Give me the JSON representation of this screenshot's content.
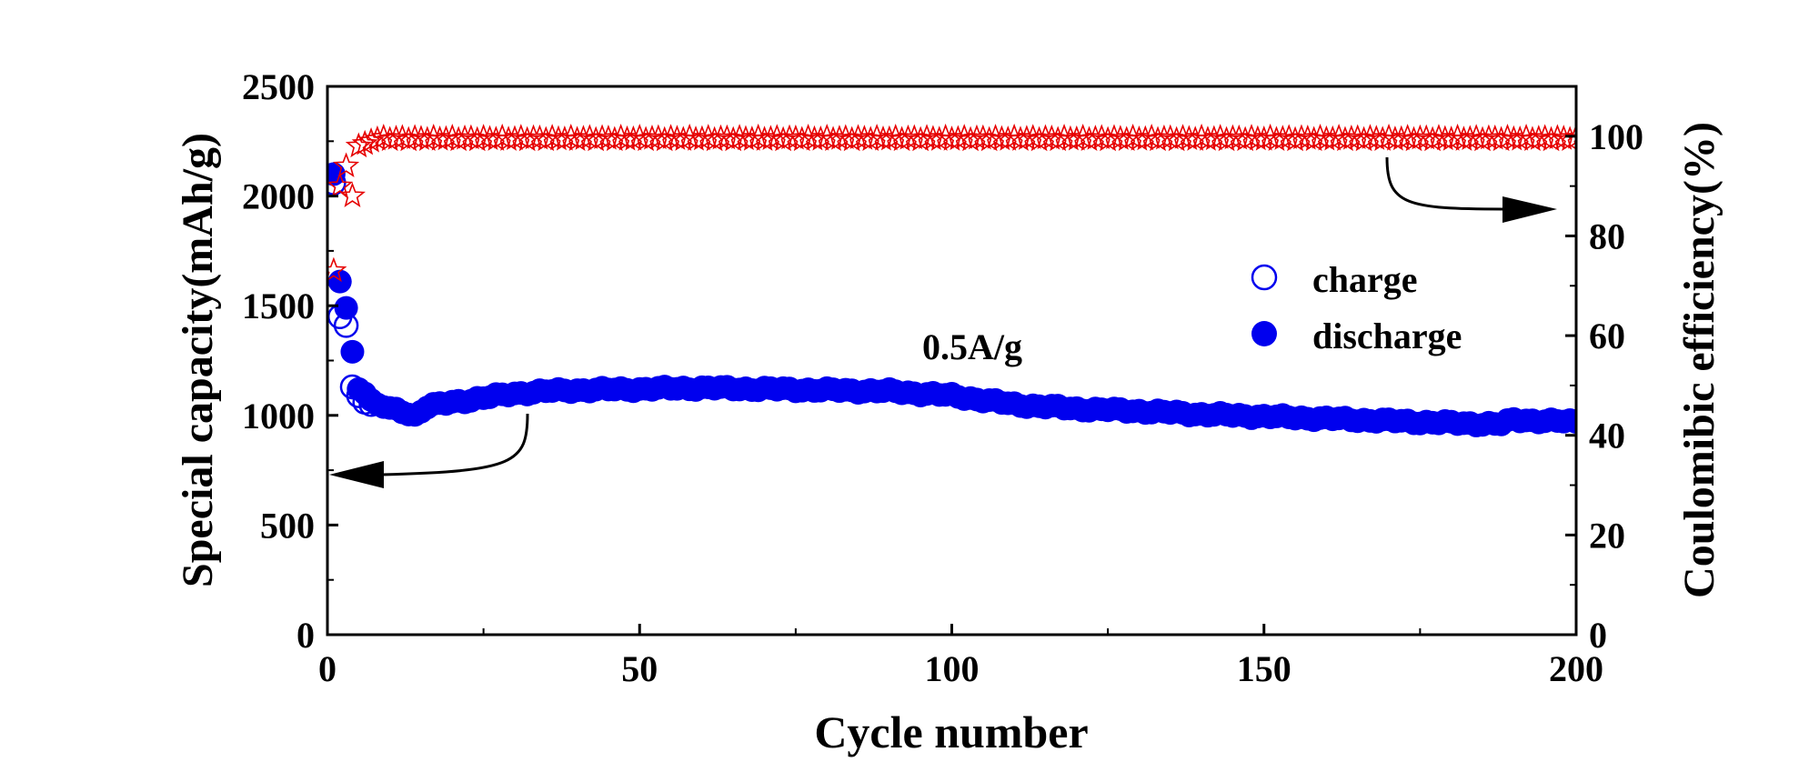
{
  "chart_data": {
    "type": "scatter",
    "title": "",
    "xlabel": "Cycle number",
    "ylabel": "Special capacity(mAh/g)",
    "y2label": "Coulomibic efficiency(%)",
    "xlim": [
      0,
      200
    ],
    "ylim": [
      0,
      2500
    ],
    "y2lim": [
      0,
      110
    ],
    "x_ticks": [
      0,
      50,
      100,
      150,
      200
    ],
    "y_ticks": [
      0,
      500,
      1000,
      1500,
      2000,
      2500
    ],
    "y2_ticks": [
      0,
      20,
      40,
      60,
      80,
      100
    ],
    "grid": false,
    "legend_position": "right",
    "annotation": "0.5A/g",
    "series": [
      {
        "name": "charge",
        "axis": "left",
        "marker": "open-circle",
        "color": "#0000ee",
        "points": [
          [
            1,
            2060
          ],
          [
            2,
            1450
          ],
          [
            3,
            1410
          ],
          [
            4,
            1130
          ],
          [
            5,
            1090
          ],
          [
            6,
            1060
          ],
          [
            7,
            1050
          ]
        ]
      },
      {
        "name": "discharge",
        "axis": "left",
        "marker": "filled-circle",
        "color": "#0000ee",
        "anchors": [
          [
            1,
            2100
          ],
          [
            2,
            1610
          ],
          [
            3,
            1490
          ],
          [
            4,
            1290
          ],
          [
            5,
            1120
          ],
          [
            6,
            1100
          ],
          [
            7,
            1070
          ],
          [
            8,
            1050
          ],
          [
            9,
            1040
          ],
          [
            10,
            1030
          ],
          [
            12,
            1020
          ],
          [
            14,
            1000
          ],
          [
            16,
            1040
          ],
          [
            20,
            1060
          ],
          [
            25,
            1080
          ],
          [
            30,
            1100
          ],
          [
            35,
            1110
          ],
          [
            40,
            1115
          ],
          [
            50,
            1120
          ],
          [
            60,
            1125
          ],
          [
            70,
            1120
          ],
          [
            80,
            1115
          ],
          [
            90,
            1110
          ],
          [
            100,
            1090
          ],
          [
            110,
            1050
          ],
          [
            120,
            1030
          ],
          [
            130,
            1020
          ],
          [
            140,
            1005
          ],
          [
            150,
            995
          ],
          [
            160,
            985
          ],
          [
            170,
            975
          ],
          [
            180,
            965
          ],
          [
            188,
            960
          ],
          [
            190,
            980
          ],
          [
            200,
            970
          ]
        ]
      },
      {
        "name": "coulombic efficiency",
        "axis": "right",
        "marker": "open-star",
        "color": "#e60000",
        "points": [
          [
            1,
            73
          ],
          [
            2,
            90
          ],
          [
            3,
            94
          ],
          [
            4,
            88
          ],
          [
            5,
            98
          ],
          [
            6,
            98.5
          ],
          [
            7,
            99
          ]
        ],
        "plateau": 99.5
      }
    ]
  }
}
